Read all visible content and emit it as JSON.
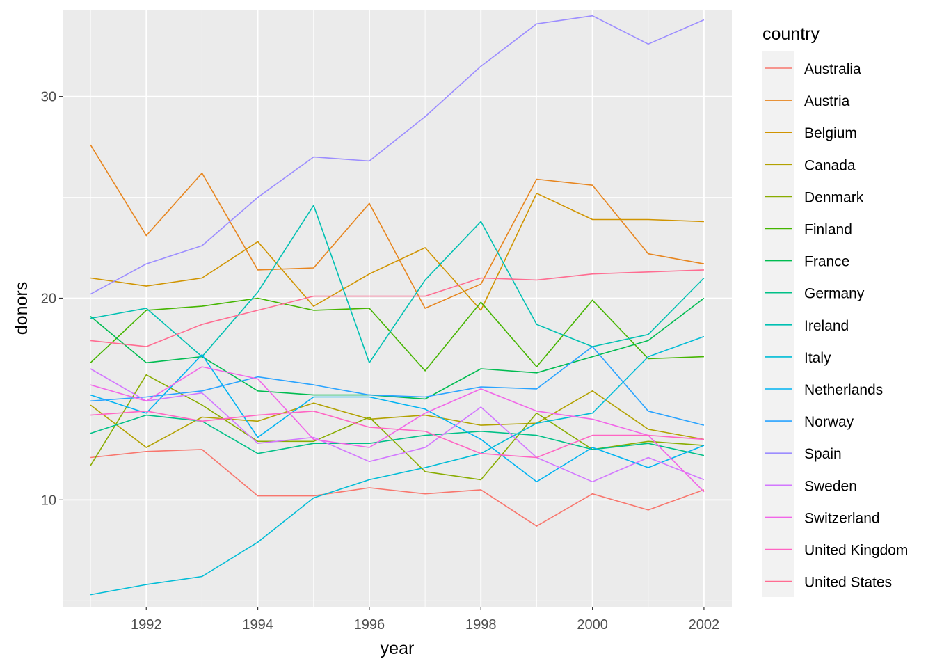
{
  "chart_data": {
    "type": "line",
    "xlabel": "year",
    "ylabel": "donors",
    "xlim": [
      1990.5,
      2002.5
    ],
    "ylim": [
      4.7,
      34.3
    ],
    "x_ticks": [
      1992,
      1994,
      1996,
      1998,
      2000,
      2002
    ],
    "x_tick_labels": [
      "1992",
      "1994",
      "1996",
      "1998",
      "2000",
      "2002"
    ],
    "y_ticks": [
      10,
      20,
      30
    ],
    "y_tick_labels": [
      "10",
      "20",
      "30"
    ],
    "grid": true,
    "legend": {
      "title": "country",
      "placement": "right"
    },
    "x": [
      1991,
      1992,
      1993,
      1994,
      1995,
      1996,
      1997,
      1998,
      1999,
      2000,
      2001,
      2002
    ],
    "series": [
      {
        "name": "Australia",
        "color": "#F8766D",
        "values": [
          12.1,
          12.4,
          12.5,
          10.2,
          10.2,
          10.6,
          10.3,
          10.5,
          8.7,
          10.3,
          9.5,
          10.5
        ]
      },
      {
        "name": "Austria",
        "color": "#E7851E",
        "values": [
          27.6,
          23.1,
          26.2,
          21.4,
          21.5,
          24.7,
          19.5,
          20.7,
          25.9,
          25.6,
          22.2,
          21.7
        ]
      },
      {
        "name": "Belgium",
        "color": "#D09400",
        "values": [
          21.0,
          20.6,
          21.0,
          22.8,
          19.6,
          21.2,
          22.5,
          19.4,
          25.2,
          23.9,
          23.9,
          23.8
        ]
      },
      {
        "name": "Canada",
        "color": "#B2A100",
        "values": [
          14.7,
          12.6,
          14.1,
          13.9,
          14.8,
          14.0,
          14.2,
          13.7,
          13.8,
          15.4,
          13.5,
          13.0
        ]
      },
      {
        "name": "Denmark",
        "color": "#89AC00",
        "values": [
          11.7,
          16.2,
          14.7,
          12.9,
          12.9,
          14.1,
          11.4,
          11.0,
          14.3,
          12.5,
          12.9,
          12.7
        ]
      },
      {
        "name": "Finland",
        "color": "#45B500",
        "values": [
          16.8,
          19.4,
          19.6,
          20.0,
          19.4,
          19.5,
          16.4,
          19.8,
          16.6,
          19.9,
          17.0,
          17.1
        ]
      },
      {
        "name": "France",
        "color": "#00BC51",
        "values": [
          19.1,
          16.8,
          17.1,
          15.4,
          15.2,
          15.2,
          15.0,
          16.5,
          16.3,
          17.1,
          17.9,
          20.0
        ]
      },
      {
        "name": "Germany",
        "color": "#00C087",
        "values": [
          13.3,
          14.2,
          13.9,
          12.3,
          12.8,
          12.8,
          13.2,
          13.4,
          13.2,
          12.5,
          12.8,
          12.2
        ]
      },
      {
        "name": "Ireland",
        "color": "#00C0B2",
        "values": [
          19.0,
          19.5,
          17.1,
          20.3,
          24.6,
          16.8,
          20.9,
          23.8,
          18.7,
          17.6,
          18.2,
          21.0
        ]
      },
      {
        "name": "Italy",
        "color": "#00BCD6",
        "values": [
          5.3,
          5.8,
          6.2,
          7.9,
          10.1,
          11.0,
          11.6,
          12.3,
          13.8,
          14.3,
          17.1,
          18.1
        ]
      },
      {
        "name": "Netherlands",
        "color": "#00B3F2",
        "values": [
          15.2,
          14.3,
          17.2,
          13.1,
          15.1,
          15.1,
          14.5,
          13.0,
          10.9,
          12.6,
          11.6,
          12.7
        ]
      },
      {
        "name": "Norway",
        "color": "#29A3FF",
        "values": [
          14.9,
          15.1,
          15.4,
          16.1,
          15.7,
          15.2,
          15.1,
          15.6,
          15.5,
          17.6,
          14.4,
          13.7
        ]
      },
      {
        "name": "Spain",
        "color": "#9C8DFF",
        "values": [
          20.2,
          21.7,
          22.6,
          25.0,
          27.0,
          26.8,
          29.0,
          31.5,
          33.6,
          34.0,
          32.6,
          33.8
        ]
      },
      {
        "name": "Sweden",
        "color": "#D277FF",
        "values": [
          16.5,
          14.9,
          15.3,
          12.8,
          13.1,
          11.9,
          12.6,
          14.6,
          12.1,
          10.9,
          12.1,
          11.0
        ]
      },
      {
        "name": "Switzerland",
        "color": "#F166E8",
        "values": [
          15.7,
          14.9,
          16.6,
          16.0,
          13.0,
          12.6,
          14.3,
          15.5,
          14.4,
          14.0,
          13.2,
          10.4
        ]
      },
      {
        "name": "United Kingdom",
        "color": "#FF65C3",
        "values": [
          14.2,
          14.4,
          13.9,
          14.2,
          14.4,
          13.6,
          13.4,
          12.3,
          12.1,
          13.2,
          13.2,
          13.0
        ]
      },
      {
        "name": "United States",
        "color": "#FF6C91",
        "values": [
          17.9,
          17.6,
          18.7,
          19.4,
          20.1,
          20.1,
          20.1,
          21.0,
          20.9,
          21.2,
          21.3,
          21.4
        ]
      }
    ]
  }
}
